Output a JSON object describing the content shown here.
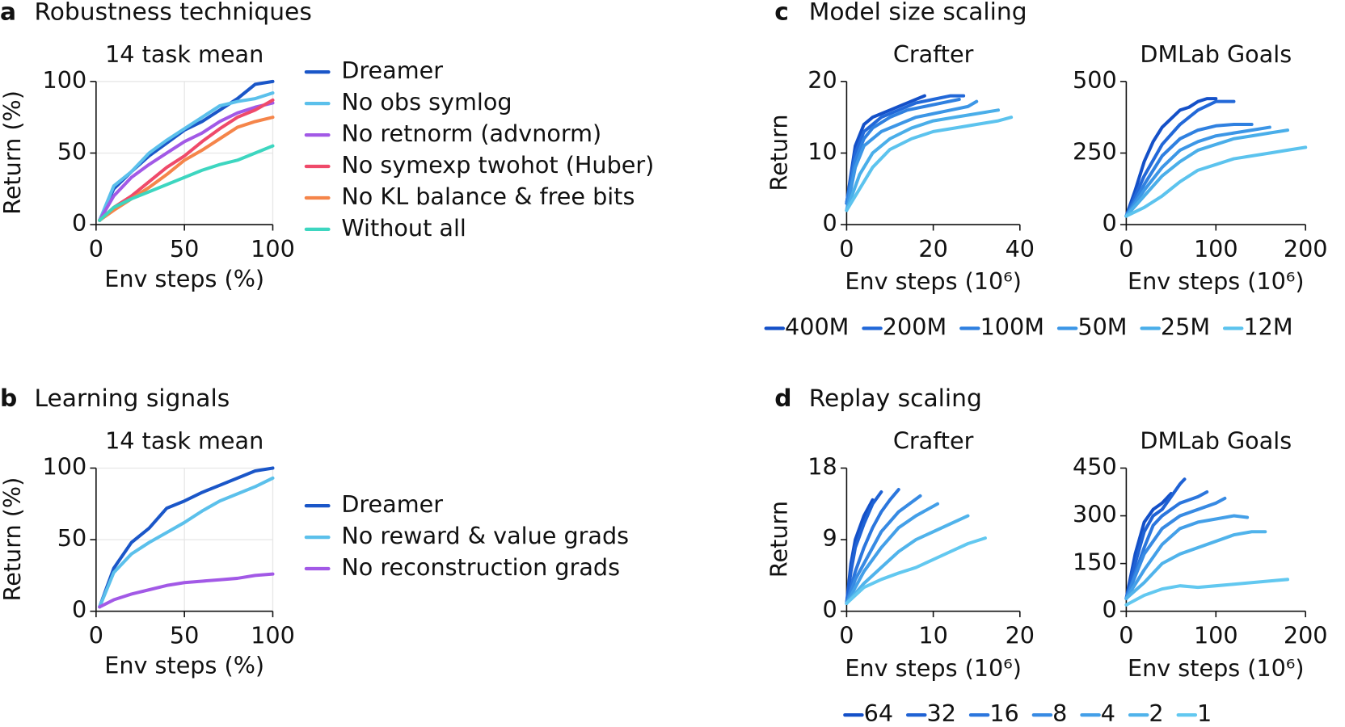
{
  "chart_data": [
    {
      "type": "line",
      "label": "a",
      "title": "Robustness techniques",
      "subtitle": "14 task mean",
      "xlabel": "Env steps (%)",
      "ylabel": "Return (%)",
      "x": [
        2,
        10,
        20,
        30,
        40,
        50,
        60,
        70,
        80,
        90,
        100
      ],
      "xlim": [
        0,
        100
      ],
      "ylim": [
        0,
        100
      ],
      "xticks": [
        0,
        50,
        100
      ],
      "yticks": [
        0,
        50,
        100
      ],
      "grid": true,
      "series": [
        {
          "name": "Dreamer",
          "color": "#1a56c8",
          "values": [
            3,
            25,
            37,
            48,
            57,
            66,
            72,
            80,
            88,
            98,
            100
          ]
        },
        {
          "name": "No obs symlog",
          "color": "#5bc0eb",
          "values": [
            3,
            27,
            37,
            50,
            59,
            67,
            75,
            83,
            86,
            88,
            92
          ]
        },
        {
          "name": "No retnorm (advnorm)",
          "color": "#a259e6",
          "values": [
            3,
            20,
            33,
            42,
            50,
            58,
            64,
            72,
            78,
            82,
            85
          ]
        },
        {
          "name": "No symexp twohot (Huber)",
          "color": "#ef4a6a",
          "values": [
            3,
            12,
            20,
            30,
            40,
            48,
            58,
            67,
            75,
            80,
            87
          ]
        },
        {
          "name": "No KL balance & free bits",
          "color": "#f5854a",
          "values": [
            3,
            10,
            18,
            26,
            35,
            45,
            52,
            60,
            68,
            72,
            75
          ]
        },
        {
          "name": "Without all",
          "color": "#3dd6c0",
          "values": [
            3,
            12,
            18,
            23,
            28,
            33,
            38,
            42,
            45,
            50,
            55
          ]
        }
      ]
    },
    {
      "type": "line",
      "label": "b",
      "title": "Learning signals",
      "subtitle": "14 task mean",
      "xlabel": "Env steps (%)",
      "ylabel": "Return (%)",
      "x": [
        2,
        10,
        20,
        30,
        40,
        50,
        60,
        70,
        80,
        90,
        100
      ],
      "xlim": [
        0,
        100
      ],
      "ylim": [
        0,
        100
      ],
      "xticks": [
        0,
        50,
        100
      ],
      "yticks": [
        0,
        50,
        100
      ],
      "grid": true,
      "series": [
        {
          "name": "Dreamer",
          "color": "#1a56c8",
          "values": [
            3,
            30,
            48,
            58,
            72,
            77,
            83,
            88,
            93,
            98,
            100
          ]
        },
        {
          "name": "No reward & value grads",
          "color": "#5bc0eb",
          "values": [
            3,
            27,
            40,
            48,
            55,
            62,
            70,
            77,
            82,
            87,
            93
          ]
        },
        {
          "name": "No reconstruction grads",
          "color": "#a259e6",
          "values": [
            3,
            8,
            12,
            15,
            18,
            20,
            21,
            22,
            23,
            25,
            26
          ]
        }
      ]
    },
    {
      "type": "line",
      "label": "c",
      "title": "Model size scaling",
      "ylabel": "Return",
      "legend": [
        {
          "name": "400M",
          "color": "#1450c8"
        },
        {
          "name": "200M",
          "color": "#2268d8"
        },
        {
          "name": "100M",
          "color": "#2f80e0"
        },
        {
          "name": "50M",
          "color": "#3c96e6"
        },
        {
          "name": "25M",
          "color": "#4aaee9"
        },
        {
          "name": "12M",
          "color": "#5cc3ee"
        }
      ],
      "subplots": [
        {
          "subtitle": "Crafter",
          "xlabel": "Env steps (10⁶)",
          "xlim": [
            0,
            40
          ],
          "ylim": [
            0,
            20
          ],
          "xticks": [
            0,
            20,
            40
          ],
          "yticks": [
            0,
            10,
            20
          ],
          "grid": false,
          "series": [
            {
              "x": [
                0,
                2,
                4,
                6,
                8,
                10,
                14,
                18
              ],
              "values": [
                3,
                11,
                14,
                15,
                15.5,
                16,
                17,
                18
              ]
            },
            {
              "x": [
                0,
                2,
                4,
                6,
                8,
                12,
                16,
                20,
                24,
                27
              ],
              "values": [
                3,
                10,
                13,
                14,
                15,
                16,
                17,
                17.5,
                18,
                18
              ]
            },
            {
              "x": [
                0,
                2,
                4,
                6,
                10,
                14,
                18,
                22,
                26
              ],
              "values": [
                3,
                9,
                12,
                13.5,
                15,
                16,
                16.5,
                17,
                17.5
              ]
            },
            {
              "x": [
                0,
                2,
                4,
                8,
                12,
                16,
                20,
                24,
                28,
                30
              ],
              "values": [
                2,
                8,
                11,
                13,
                14,
                15,
                15.5,
                16,
                16.5,
                17.2
              ]
            },
            {
              "x": [
                0,
                3,
                6,
                10,
                15,
                20,
                25,
                30,
                35
              ],
              "values": [
                2,
                7,
                10,
                12,
                13.5,
                14.5,
                15,
                15.5,
                16
              ]
            },
            {
              "x": [
                0,
                3,
                6,
                10,
                15,
                20,
                25,
                30,
                35,
                38
              ],
              "values": [
                2,
                5,
                8,
                10.5,
                12,
                13,
                13.5,
                14,
                14.5,
                15
              ]
            }
          ]
        },
        {
          "subtitle": "DMLab Goals",
          "xlabel": "Env steps (10⁶)",
          "xlim": [
            0,
            200
          ],
          "ylim": [
            0,
            500
          ],
          "xticks": [
            0,
            100,
            200
          ],
          "yticks": [
            0,
            250,
            500
          ],
          "grid": false,
          "series": [
            {
              "x": [
                0,
                10,
                20,
                30,
                40,
                50,
                60,
                70,
                80,
                90,
                100
              ],
              "values": [
                30,
                120,
                220,
                290,
                340,
                370,
                400,
                410,
                430,
                440,
                440
              ]
            },
            {
              "x": [
                0,
                20,
                40,
                60,
                80,
                100,
                120
              ],
              "values": [
                30,
                170,
                280,
                350,
                400,
                430,
                430
              ]
            },
            {
              "x": [
                0,
                20,
                40,
                60,
                80,
                100,
                120,
                140
              ],
              "values": [
                30,
                140,
                240,
                300,
                330,
                345,
                350,
                350
              ]
            },
            {
              "x": [
                0,
                20,
                40,
                60,
                80,
                100,
                120,
                140,
                160
              ],
              "values": [
                30,
                120,
                200,
                260,
                290,
                310,
                320,
                330,
                340
              ]
            },
            {
              "x": [
                0,
                20,
                40,
                60,
                80,
                100,
                120,
                140,
                160,
                180
              ],
              "values": [
                30,
                100,
                170,
                220,
                260,
                280,
                300,
                310,
                320,
                330
              ]
            },
            {
              "x": [
                0,
                20,
                40,
                60,
                80,
                100,
                120,
                140,
                160,
                180,
                200
              ],
              "values": [
                30,
                60,
                100,
                150,
                190,
                210,
                230,
                240,
                250,
                260,
                270
              ]
            }
          ]
        }
      ]
    },
    {
      "type": "line",
      "label": "d",
      "title": "Replay scaling",
      "ylabel": "Return",
      "legend": [
        {
          "name": "64",
          "color": "#1450c8"
        },
        {
          "name": "32",
          "color": "#1f62d4"
        },
        {
          "name": "16",
          "color": "#2b76dd"
        },
        {
          "name": "8",
          "color": "#378ae3"
        },
        {
          "name": "4",
          "color": "#439fe8"
        },
        {
          "name": "2",
          "color": "#50b3eb"
        },
        {
          "name": "1",
          "color": "#62c8f0"
        }
      ],
      "subplots": [
        {
          "subtitle": "Crafter",
          "xlabel": "Env steps (10⁶)",
          "xlim": [
            0,
            20
          ],
          "ylim": [
            0,
            18
          ],
          "xticks": [
            0,
            10,
            20
          ],
          "yticks": [
            0,
            9,
            18
          ],
          "grid": false,
          "series": [
            {
              "x": [
                0,
                0.5,
                1,
                2,
                3
              ],
              "values": [
                1,
                6,
                9,
                12,
                14
              ]
            },
            {
              "x": [
                0,
                0.5,
                1,
                2,
                3,
                4
              ],
              "values": [
                1,
                5,
                8,
                11,
                13.5,
                15
              ]
            },
            {
              "x": [
                0,
                1,
                2,
                3,
                4,
                5,
                6
              ],
              "values": [
                1,
                5,
                8,
                10.5,
                12.5,
                14,
                15.3
              ]
            },
            {
              "x": [
                0,
                1,
                2,
                4,
                6,
                8.5
              ],
              "values": [
                1,
                4,
                6,
                10,
                12.5,
                14.5
              ]
            },
            {
              "x": [
                0,
                1,
                2,
                4,
                6,
                8,
                10.5
              ],
              "values": [
                1,
                3,
                5,
                8,
                10.5,
                12,
                13.5
              ]
            },
            {
              "x": [
                0,
                2,
                4,
                6,
                8,
                10,
                12,
                14
              ],
              "values": [
                1,
                3.5,
                5.5,
                7.5,
                9,
                10,
                11,
                12
              ]
            },
            {
              "x": [
                0,
                2,
                4,
                6,
                8,
                10,
                12,
                14,
                16
              ],
              "values": [
                1,
                3,
                4,
                4.8,
                5.5,
                6.5,
                7.5,
                8.5,
                9.2
              ]
            }
          ]
        },
        {
          "subtitle": "DMLab Goals",
          "xlabel": "Env steps (10⁶)",
          "xlim": [
            0,
            200
          ],
          "ylim": [
            0,
            450
          ],
          "xticks": [
            0,
            100,
            200
          ],
          "yticks": [
            0,
            150,
            300,
            450
          ],
          "grid": false,
          "series": [
            {
              "x": [
                0,
                10,
                20,
                30,
                40,
                50
              ],
              "values": [
                40,
                180,
                280,
                320,
                340,
                370
              ]
            },
            {
              "x": [
                0,
                10,
                20,
                30,
                40,
                50,
                60,
                65
              ],
              "values": [
                40,
                150,
                250,
                300,
                320,
                360,
                400,
                415
              ]
            },
            {
              "x": [
                0,
                10,
                20,
                30,
                40,
                50,
                60,
                70,
                80,
                90
              ],
              "values": [
                40,
                120,
                200,
                270,
                300,
                320,
                340,
                350,
                360,
                375
              ]
            },
            {
              "x": [
                0,
                20,
                40,
                60,
                80,
                100,
                110
              ],
              "values": [
                40,
                180,
                260,
                300,
                320,
                340,
                355
              ]
            },
            {
              "x": [
                0,
                20,
                40,
                60,
                80,
                100,
                120,
                135
              ],
              "values": [
                40,
                130,
                210,
                260,
                280,
                290,
                300,
                295
              ]
            },
            {
              "x": [
                0,
                20,
                40,
                60,
                80,
                100,
                120,
                140,
                155
              ],
              "values": [
                40,
                90,
                150,
                180,
                200,
                220,
                240,
                250,
                250
              ]
            },
            {
              "x": [
                0,
                20,
                40,
                60,
                80,
                100,
                120,
                140,
                160,
                180
              ],
              "values": [
                20,
                50,
                70,
                80,
                75,
                80,
                85,
                90,
                95,
                100
              ]
            }
          ]
        }
      ]
    }
  ]
}
